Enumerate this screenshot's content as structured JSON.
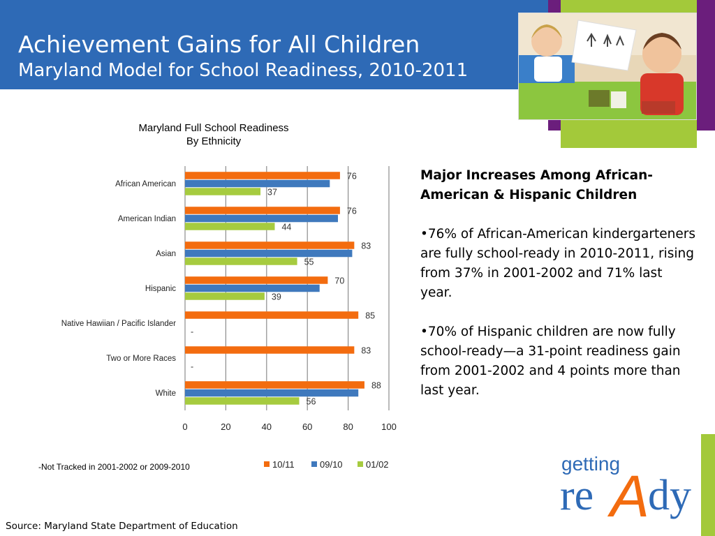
{
  "slide": {
    "title": "Achievement Gains for All Children",
    "subtitle": "Maryland Model for School Readiness, 2010-2011",
    "note": "-Not Tracked in 2001-2002 or 2009-2010",
    "source": "Source: Maryland State Department of Education"
  },
  "right_panel": {
    "heading": "Major Increases Among African-American & Hispanic Children",
    "bullets": [
      "•76% of African-American kindergarteners are fully school-ready in 2010-2011, rising from 37% in 2001-2002 and 71% last year.",
      "•70% of Hispanic children are now fully school-ready—a 31-point readiness gain from 2001-2002 and 4 points more than last year."
    ]
  },
  "logo": {
    "word1": "getting",
    "word2_a": "re",
    "word2_b": "A",
    "word2_c": "dy"
  },
  "colors": {
    "header": "#2e6ab6",
    "series_1011": "#f36c0f",
    "series_0910": "#3f79bd",
    "series_0102": "#a6cb3f",
    "deco_purple": "#6b1e7c",
    "deco_green": "#a3c93a"
  },
  "chart_data": {
    "type": "bar",
    "orientation": "horizontal",
    "title": "Maryland Full School Readiness",
    "subtitle": "By Ethnicity",
    "categories": [
      "African American",
      "American Indian",
      "Asian",
      "Hispanic",
      "Native Hawiian / Pacific Islander",
      "Two or More Races",
      "White"
    ],
    "series": [
      {
        "name": "10/11",
        "color": "#f36c0f",
        "values": [
          76,
          76,
          83,
          70,
          85,
          83,
          88
        ],
        "labels": [
          "76",
          "76",
          "83",
          "70",
          "85",
          "83",
          "88"
        ]
      },
      {
        "name": "09/10",
        "color": "#3f79bd",
        "values": [
          71,
          75,
          82,
          66,
          null,
          null,
          85
        ],
        "labels": []
      },
      {
        "name": "01/02",
        "color": "#a6cb3f",
        "values": [
          37,
          44,
          55,
          39,
          null,
          null,
          56
        ],
        "labels": [
          "37",
          "44",
          "55",
          "39",
          "-",
          "-",
          "56"
        ]
      }
    ],
    "xlim": [
      0,
      100
    ],
    "xticks": [
      0,
      20,
      40,
      60,
      80,
      100
    ],
    "grid": true,
    "legend_position": "bottom"
  }
}
